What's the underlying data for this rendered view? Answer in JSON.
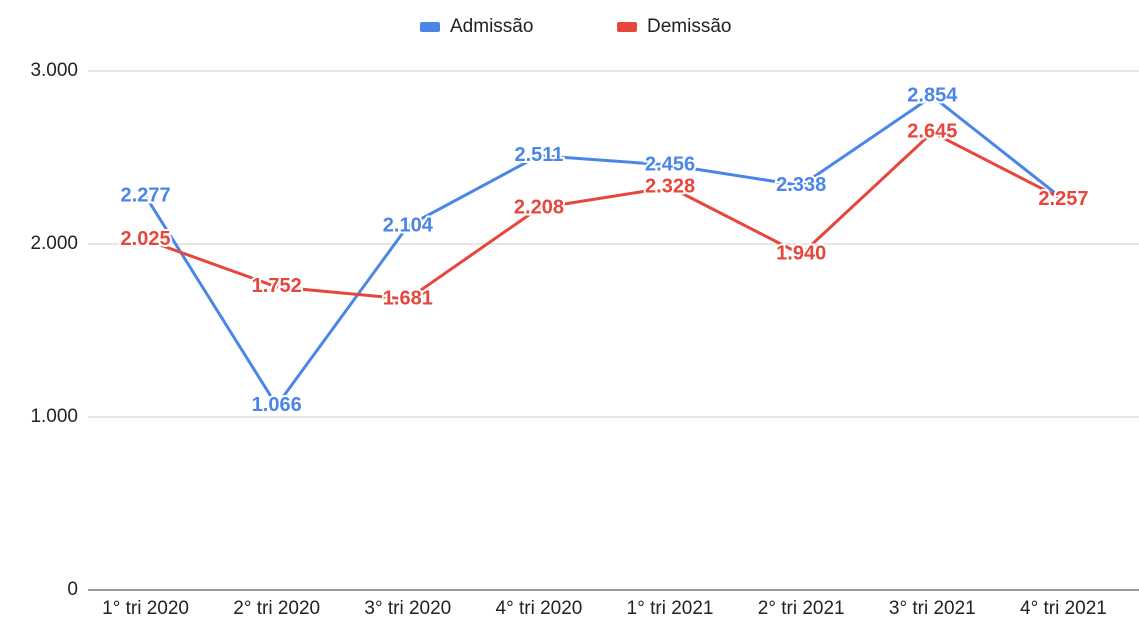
{
  "chart_data": {
    "type": "line",
    "categories": [
      "1° tri 2020",
      "2° tri 2020",
      "3° tri 2020",
      "4° tri 2020",
      "1° tri 2021",
      "2° tri 2021",
      "3° tri 2021",
      "4° tri 2021"
    ],
    "series": [
      {
        "name": "Admissão",
        "color": "#4a86e8",
        "values": [
          2277,
          1066,
          2104,
          2511,
          2456,
          2338,
          2854,
          2257
        ],
        "value_labels": [
          "2.277",
          "1.066",
          "2.104",
          "2.511",
          "2.456",
          "2.338",
          "2.854",
          "2.257"
        ]
      },
      {
        "name": "Demissão",
        "color": "#e8453c",
        "values": [
          2025,
          1752,
          1681,
          2208,
          2328,
          1940,
          2645,
          2257
        ],
        "value_labels": [
          "2.025",
          "1.752",
          "1.681",
          "2.208",
          "2.328",
          "1.940",
          "2.645",
          "2.257"
        ]
      }
    ],
    "ylim": [
      0,
      3000
    ],
    "yticks": [
      0,
      {
        "value": 1000,
        "label": "1.000"
      },
      {
        "value": 2000,
        "label": "2.000"
      },
      {
        "value": 3000,
        "label": "3.000"
      }
    ],
    "grid": true,
    "legend": "top"
  }
}
